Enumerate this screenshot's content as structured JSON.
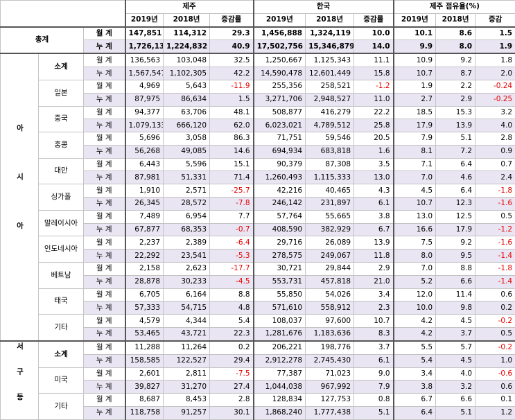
{
  "header": {
    "groups": [
      "제주",
      "한국",
      "제주 점유율(%)"
    ],
    "columns": [
      [
        "2019년",
        "2018년",
        "증감률"
      ],
      [
        "2019년",
        "2018년",
        "증감률"
      ],
      [
        "2019년",
        "2018년",
        "증감"
      ]
    ]
  },
  "total": {
    "label": "총계",
    "rows": [
      {
        "label": "월 계",
        "values": [
          "147,851",
          "114,312",
          "29.3",
          "1,456,888",
          "1,324,119",
          "10.0",
          "10.1",
          "8.6",
          "1.5"
        ]
      },
      {
        "label": "누 계",
        "values": [
          "1,726,132",
          "1,224,832",
          "40.9",
          "17,502,756",
          "15,346,879",
          "14.0",
          "9.9",
          "8.0",
          "1.9"
        ]
      }
    ]
  },
  "sections": [
    {
      "region": "아시아",
      "groups": [
        {
          "name": "소계",
          "rows": [
            {
              "label": "월 계",
              "values": [
                "136,563",
                "103,048",
                "32.5",
                "1,250,667",
                "1,125,343",
                "11.1",
                "10.9",
                "9.2",
                "1.8"
              ]
            },
            {
              "label": "누 계",
              "values": [
                "1,567,547",
                "1,102,305",
                "42.2",
                "14,590,478",
                "12,601,449",
                "15.8",
                "10.7",
                "8.7",
                "2.0"
              ]
            }
          ]
        },
        {
          "name": "일본",
          "rows": [
            {
              "label": "월 계",
              "values": [
                "4,969",
                "5,643",
                "-11.9",
                "255,356",
                "258,521",
                "-1.2",
                "1.9",
                "2.2",
                "-0.24"
              ]
            },
            {
              "label": "누 계",
              "values": [
                "87,975",
                "86,634",
                "1.5",
                "3,271,706",
                "2,948,527",
                "11.0",
                "2.7",
                "2.9",
                "-0.25"
              ]
            }
          ]
        },
        {
          "name": "중국",
          "rows": [
            {
              "label": "월 계",
              "values": [
                "94,377",
                "63,706",
                "48.1",
                "508,877",
                "416,279",
                "22.2",
                "18.5",
                "15.3",
                "3.2"
              ]
            },
            {
              "label": "누 계",
              "values": [
                "1,079,133",
                "666,120",
                "62.0",
                "6,023,021",
                "4,789,512",
                "25.8",
                "17.9",
                "13.9",
                "4.0"
              ]
            }
          ]
        },
        {
          "name": "홍콩",
          "rows": [
            {
              "label": "월 계",
              "values": [
                "5,696",
                "3,058",
                "86.3",
                "71,751",
                "59,546",
                "20.5",
                "7.9",
                "5.1",
                "2.8"
              ]
            },
            {
              "label": "누 계",
              "values": [
                "56,268",
                "49,085",
                "14.6",
                "694,934",
                "683,818",
                "1.6",
                "8.1",
                "7.2",
                "0.9"
              ]
            }
          ]
        },
        {
          "name": "대만",
          "rows": [
            {
              "label": "월 계",
              "values": [
                "6,443",
                "5,596",
                "15.1",
                "90,379",
                "87,308",
                "3.5",
                "7.1",
                "6.4",
                "0.7"
              ]
            },
            {
              "label": "누 계",
              "values": [
                "87,981",
                "51,331",
                "71.4",
                "1,260,493",
                "1,115,333",
                "13.0",
                "7.0",
                "4.6",
                "2.4"
              ]
            }
          ]
        },
        {
          "name": "싱가폴",
          "rows": [
            {
              "label": "월 계",
              "values": [
                "1,910",
                "2,571",
                "-25.7",
                "42,216",
                "40,465",
                "4.3",
                "4.5",
                "6.4",
                "-1.8"
              ]
            },
            {
              "label": "누 계",
              "values": [
                "26,345",
                "28,572",
                "-7.8",
                "246,142",
                "231,897",
                "6.1",
                "10.7",
                "12.3",
                "-1.6"
              ]
            }
          ]
        },
        {
          "name": "말레이시아",
          "rows": [
            {
              "label": "월 계",
              "values": [
                "7,489",
                "6,954",
                "7.7",
                "57,764",
                "55,665",
                "3.8",
                "13.0",
                "12.5",
                "0.5"
              ]
            },
            {
              "label": "누 계",
              "values": [
                "67,877",
                "68,353",
                "-0.7",
                "408,590",
                "382,929",
                "6.7",
                "16.6",
                "17.9",
                "-1.2"
              ]
            }
          ]
        },
        {
          "name": "인도네시아",
          "rows": [
            {
              "label": "월 계",
              "values": [
                "2,237",
                "2,389",
                "-6.4",
                "29,716",
                "26,089",
                "13.9",
                "7.5",
                "9.2",
                "-1.6"
              ]
            },
            {
              "label": "누 계",
              "values": [
                "22,292",
                "23,541",
                "-5.3",
                "278,575",
                "249,067",
                "11.8",
                "8.0",
                "9.5",
                "-1.4"
              ]
            }
          ]
        },
        {
          "name": "베트남",
          "rows": [
            {
              "label": "월 계",
              "values": [
                "2,158",
                "2,623",
                "-17.7",
                "30,721",
                "29,844",
                "2.9",
                "7.0",
                "8.8",
                "-1.8"
              ]
            },
            {
              "label": "누 계",
              "values": [
                "28,878",
                "30,233",
                "-4.5",
                "553,731",
                "457,818",
                "21.0",
                "5.2",
                "6.6",
                "-1.4"
              ]
            }
          ]
        },
        {
          "name": "태국",
          "rows": [
            {
              "label": "월 계",
              "values": [
                "6,705",
                "6,164",
                "8.8",
                "55,850",
                "54,026",
                "3.4",
                "12.0",
                "11.4",
                "0.6"
              ]
            },
            {
              "label": "누 계",
              "values": [
                "57,333",
                "54,715",
                "4.8",
                "571,610",
                "558,912",
                "2.3",
                "10.0",
                "9.8",
                "0.2"
              ]
            }
          ]
        },
        {
          "name": "기타",
          "rows": [
            {
              "label": "월 계",
              "values": [
                "4,579",
                "4,344",
                "5.4",
                "108,037",
                "97,600",
                "10.7",
                "4.2",
                "4.5",
                "-0.2"
              ]
            },
            {
              "label": "누 계",
              "values": [
                "53,465",
                "43,721",
                "22.3",
                "1,281,676",
                "1,183,636",
                "8.3",
                "4.2",
                "3.7",
                "0.5"
              ]
            }
          ]
        }
      ]
    },
    {
      "region": "서구등",
      "groups": [
        {
          "name": "소계",
          "rows": [
            {
              "label": "월 계",
              "values": [
                "11,288",
                "11,264",
                "0.2",
                "206,221",
                "198,776",
                "3.7",
                "5.5",
                "5.7",
                "-0.2"
              ]
            },
            {
              "label": "누 계",
              "values": [
                "158,585",
                "122,527",
                "29.4",
                "2,912,278",
                "2,745,430",
                "6.1",
                "5.4",
                "4.5",
                "1.0"
              ]
            }
          ]
        },
        {
          "name": "미국",
          "rows": [
            {
              "label": "월 계",
              "values": [
                "2,601",
                "2,811",
                "-7.5",
                "77,387",
                "71,023",
                "9.0",
                "3.4",
                "4.0",
                "-0.6"
              ]
            },
            {
              "label": "누 계",
              "values": [
                "39,827",
                "31,270",
                "27.4",
                "1,044,038",
                "967,992",
                "7.9",
                "3.8",
                "3.2",
                "0.6"
              ]
            }
          ]
        },
        {
          "name": "기타",
          "rows": [
            {
              "label": "월 계",
              "values": [
                "8,687",
                "8,453",
                "2.8",
                "128,834",
                "127,753",
                "0.8",
                "6.7",
                "6.6",
                "0.1"
              ]
            },
            {
              "label": "누 계",
              "values": [
                "118,758",
                "91,257",
                "30.1",
                "1,868,240",
                "1,777,438",
                "5.1",
                "6.4",
                "5.1",
                "1.2"
              ]
            }
          ]
        }
      ]
    }
  ]
}
